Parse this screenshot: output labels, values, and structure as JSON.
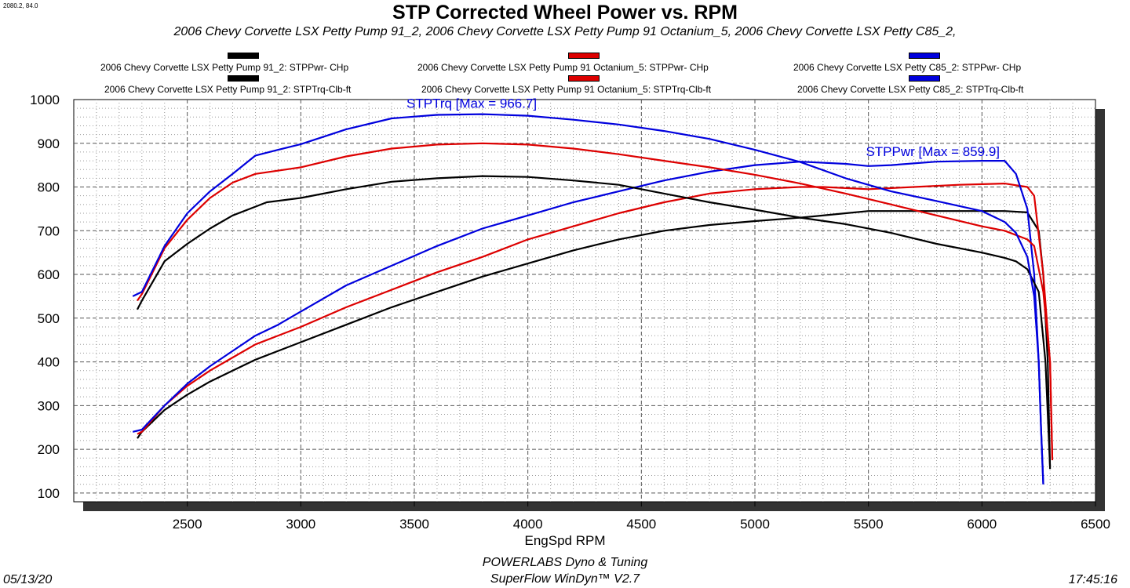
{
  "corner_label": "2080.2, 84.0",
  "chart_data": {
    "type": "line",
    "title": "STP Corrected Wheel Power vs. RPM",
    "subtitle": "2006 Chevy Corvette LSX Petty Pump 91_2, 2006 Chevy Corvette LSX Petty Pump 91 Octanium_5, 2006 Chevy Corvette LSX Petty C85_2,",
    "xlabel": "EngSpd  RPM",
    "ylabel": "",
    "xlim": [
      2000,
      6500
    ],
    "ylim": [
      80,
      1000
    ],
    "xticks": [
      2500,
      3000,
      3500,
      4000,
      4500,
      5000,
      5500,
      6000,
      6500
    ],
    "yticks": [
      100,
      200,
      300,
      400,
      500,
      600,
      700,
      800,
      900,
      1000
    ],
    "grid": true,
    "legend_position": "top",
    "legend": [
      {
        "label": "2006 Chevy Corvette LSX Petty Pump 91_2: STPPwr- CHp",
        "color": "#000000"
      },
      {
        "label": "2006 Chevy Corvette LSX Petty Pump 91 Octanium_5: STPPwr- CHp",
        "color": "#dd0000"
      },
      {
        "label": "2006 Chevy Corvette LSX Petty C85_2: STPPwr- CHp",
        "color": "#0000dd"
      },
      {
        "label": "2006 Chevy Corvette LSX Petty Pump 91_2: STPTrq-Clb-ft",
        "color": "#000000"
      },
      {
        "label": "2006 Chevy Corvette LSX Petty Pump 91 Octanium_5: STPTrq-Clb-ft",
        "color": "#dd0000"
      },
      {
        "label": "2006 Chevy Corvette LSX Petty C85_2: STPTrq-Clb-ft",
        "color": "#0000dd"
      }
    ],
    "annotations": [
      {
        "text": "STPTrq [Max = 966.7]",
        "color": "#0000dd",
        "x": 3500,
        "y": 966.7
      },
      {
        "text": "STPPwr [Max = 859.9]",
        "color": "#0000dd",
        "x": 5800,
        "y": 859.9
      }
    ],
    "series": [
      {
        "name": "2006 Chevy Corvette LSX Petty Pump 91_2: STPPwr- CHp",
        "color": "#000000",
        "points": [
          [
            2280,
            225
          ],
          [
            2300,
            240
          ],
          [
            2400,
            290
          ],
          [
            2500,
            325
          ],
          [
            2600,
            355
          ],
          [
            2700,
            380
          ],
          [
            2800,
            405
          ],
          [
            2900,
            425
          ],
          [
            3000,
            445
          ],
          [
            3200,
            485
          ],
          [
            3400,
            525
          ],
          [
            3600,
            560
          ],
          [
            3800,
            595
          ],
          [
            4000,
            625
          ],
          [
            4200,
            655
          ],
          [
            4400,
            680
          ],
          [
            4600,
            700
          ],
          [
            4800,
            713
          ],
          [
            5000,
            722
          ],
          [
            5200,
            730
          ],
          [
            5400,
            740
          ],
          [
            5500,
            745
          ],
          [
            5700,
            745
          ],
          [
            5900,
            745
          ],
          [
            6100,
            745
          ],
          [
            6200,
            742
          ],
          [
            6250,
            700
          ],
          [
            6270,
            600
          ],
          [
            6290,
            400
          ],
          [
            6300,
            155
          ]
        ]
      },
      {
        "name": "2006 Chevy Corvette LSX Petty Pump 91 Octanium_5: STPPwr- CHp",
        "color": "#dd0000",
        "points": [
          [
            2280,
            235
          ],
          [
            2300,
            240
          ],
          [
            2400,
            300
          ],
          [
            2500,
            345
          ],
          [
            2600,
            380
          ],
          [
            2700,
            410
          ],
          [
            2800,
            440
          ],
          [
            2900,
            460
          ],
          [
            3000,
            480
          ],
          [
            3200,
            525
          ],
          [
            3400,
            565
          ],
          [
            3600,
            605
          ],
          [
            3800,
            640
          ],
          [
            4000,
            680
          ],
          [
            4200,
            710
          ],
          [
            4400,
            740
          ],
          [
            4600,
            765
          ],
          [
            4800,
            785
          ],
          [
            5000,
            795
          ],
          [
            5200,
            800
          ],
          [
            5300,
            800
          ],
          [
            5500,
            795
          ],
          [
            5700,
            800
          ],
          [
            5900,
            805
          ],
          [
            6100,
            808
          ],
          [
            6200,
            800
          ],
          [
            6230,
            780
          ],
          [
            6270,
            600
          ],
          [
            6300,
            400
          ],
          [
            6310,
            175
          ]
        ]
      },
      {
        "name": "2006 Chevy Corvette LSX Petty C85_2: STPPwr- CHp",
        "color": "#0000dd",
        "points": [
          [
            2260,
            240
          ],
          [
            2300,
            245
          ],
          [
            2400,
            300
          ],
          [
            2500,
            350
          ],
          [
            2600,
            390
          ],
          [
            2700,
            425
          ],
          [
            2800,
            460
          ],
          [
            2900,
            485
          ],
          [
            3000,
            515
          ],
          [
            3200,
            575
          ],
          [
            3400,
            620
          ],
          [
            3600,
            665
          ],
          [
            3800,
            705
          ],
          [
            4000,
            735
          ],
          [
            4200,
            765
          ],
          [
            4400,
            790
          ],
          [
            4600,
            815
          ],
          [
            4800,
            835
          ],
          [
            5000,
            850
          ],
          [
            5200,
            858
          ],
          [
            5400,
            853
          ],
          [
            5500,
            848
          ],
          [
            5600,
            850
          ],
          [
            5800,
            858
          ],
          [
            6000,
            860
          ],
          [
            6100,
            859.9
          ],
          [
            6150,
            830
          ],
          [
            6200,
            750
          ],
          [
            6230,
            600
          ],
          [
            6250,
            400
          ],
          [
            6260,
            250
          ],
          [
            6270,
            120
          ]
        ]
      },
      {
        "name": "2006 Chevy Corvette LSX Petty Pump 91_2: STPTrq-Clb-ft",
        "color": "#000000",
        "points": [
          [
            2280,
            520
          ],
          [
            2300,
            540
          ],
          [
            2400,
            630
          ],
          [
            2500,
            670
          ],
          [
            2600,
            705
          ],
          [
            2700,
            735
          ],
          [
            2800,
            755
          ],
          [
            2850,
            765
          ],
          [
            3000,
            775
          ],
          [
            3200,
            795
          ],
          [
            3400,
            812
          ],
          [
            3600,
            820
          ],
          [
            3800,
            825
          ],
          [
            4000,
            823
          ],
          [
            4200,
            815
          ],
          [
            4400,
            805
          ],
          [
            4600,
            785
          ],
          [
            4800,
            765
          ],
          [
            5000,
            748
          ],
          [
            5200,
            730
          ],
          [
            5400,
            715
          ],
          [
            5600,
            695
          ],
          [
            5800,
            670
          ],
          [
            6000,
            650
          ],
          [
            6100,
            638
          ],
          [
            6150,
            630
          ],
          [
            6200,
            612
          ],
          [
            6250,
            560
          ],
          [
            6280,
            400
          ],
          [
            6300,
            160
          ]
        ]
      },
      {
        "name": "2006 Chevy Corvette LSX Petty Pump 91 Octanium_5: STPTrq-Clb-ft",
        "color": "#dd0000",
        "points": [
          [
            2280,
            540
          ],
          [
            2300,
            555
          ],
          [
            2400,
            660
          ],
          [
            2500,
            725
          ],
          [
            2600,
            775
          ],
          [
            2700,
            810
          ],
          [
            2800,
            830
          ],
          [
            3000,
            845
          ],
          [
            3200,
            870
          ],
          [
            3400,
            888
          ],
          [
            3600,
            897
          ],
          [
            3800,
            900
          ],
          [
            4000,
            897
          ],
          [
            4200,
            888
          ],
          [
            4400,
            875
          ],
          [
            4600,
            860
          ],
          [
            4800,
            845
          ],
          [
            5000,
            828
          ],
          [
            5200,
            808
          ],
          [
            5400,
            785
          ],
          [
            5600,
            760
          ],
          [
            5800,
            735
          ],
          [
            6000,
            710
          ],
          [
            6100,
            700
          ],
          [
            6200,
            680
          ],
          [
            6230,
            665
          ],
          [
            6270,
            560
          ],
          [
            6300,
            400
          ],
          [
            6310,
            180
          ]
        ]
      },
      {
        "name": "2006 Chevy Corvette LSX Petty C85_2: STPTrq-Clb-ft",
        "color": "#0000dd",
        "points": [
          [
            2260,
            550
          ],
          [
            2300,
            560
          ],
          [
            2400,
            665
          ],
          [
            2500,
            740
          ],
          [
            2600,
            790
          ],
          [
            2700,
            830
          ],
          [
            2800,
            872
          ],
          [
            2900,
            885
          ],
          [
            3000,
            898
          ],
          [
            3200,
            932
          ],
          [
            3400,
            957
          ],
          [
            3600,
            965
          ],
          [
            3800,
            966.7
          ],
          [
            4000,
            963
          ],
          [
            4200,
            954
          ],
          [
            4400,
            943
          ],
          [
            4600,
            928
          ],
          [
            4800,
            910
          ],
          [
            5000,
            885
          ],
          [
            5200,
            857
          ],
          [
            5400,
            820
          ],
          [
            5600,
            790
          ],
          [
            5800,
            768
          ],
          [
            6000,
            745
          ],
          [
            6100,
            720
          ],
          [
            6150,
            695
          ],
          [
            6200,
            640
          ],
          [
            6230,
            550
          ],
          [
            6250,
            400
          ],
          [
            6260,
            250
          ],
          [
            6270,
            120
          ]
        ]
      }
    ]
  },
  "footer": {
    "company": "POWERLABS Dyno & Tuning",
    "software": "SuperFlow WinDyn™  V2.7",
    "date": "05/13/20",
    "time": "17:45:16"
  }
}
